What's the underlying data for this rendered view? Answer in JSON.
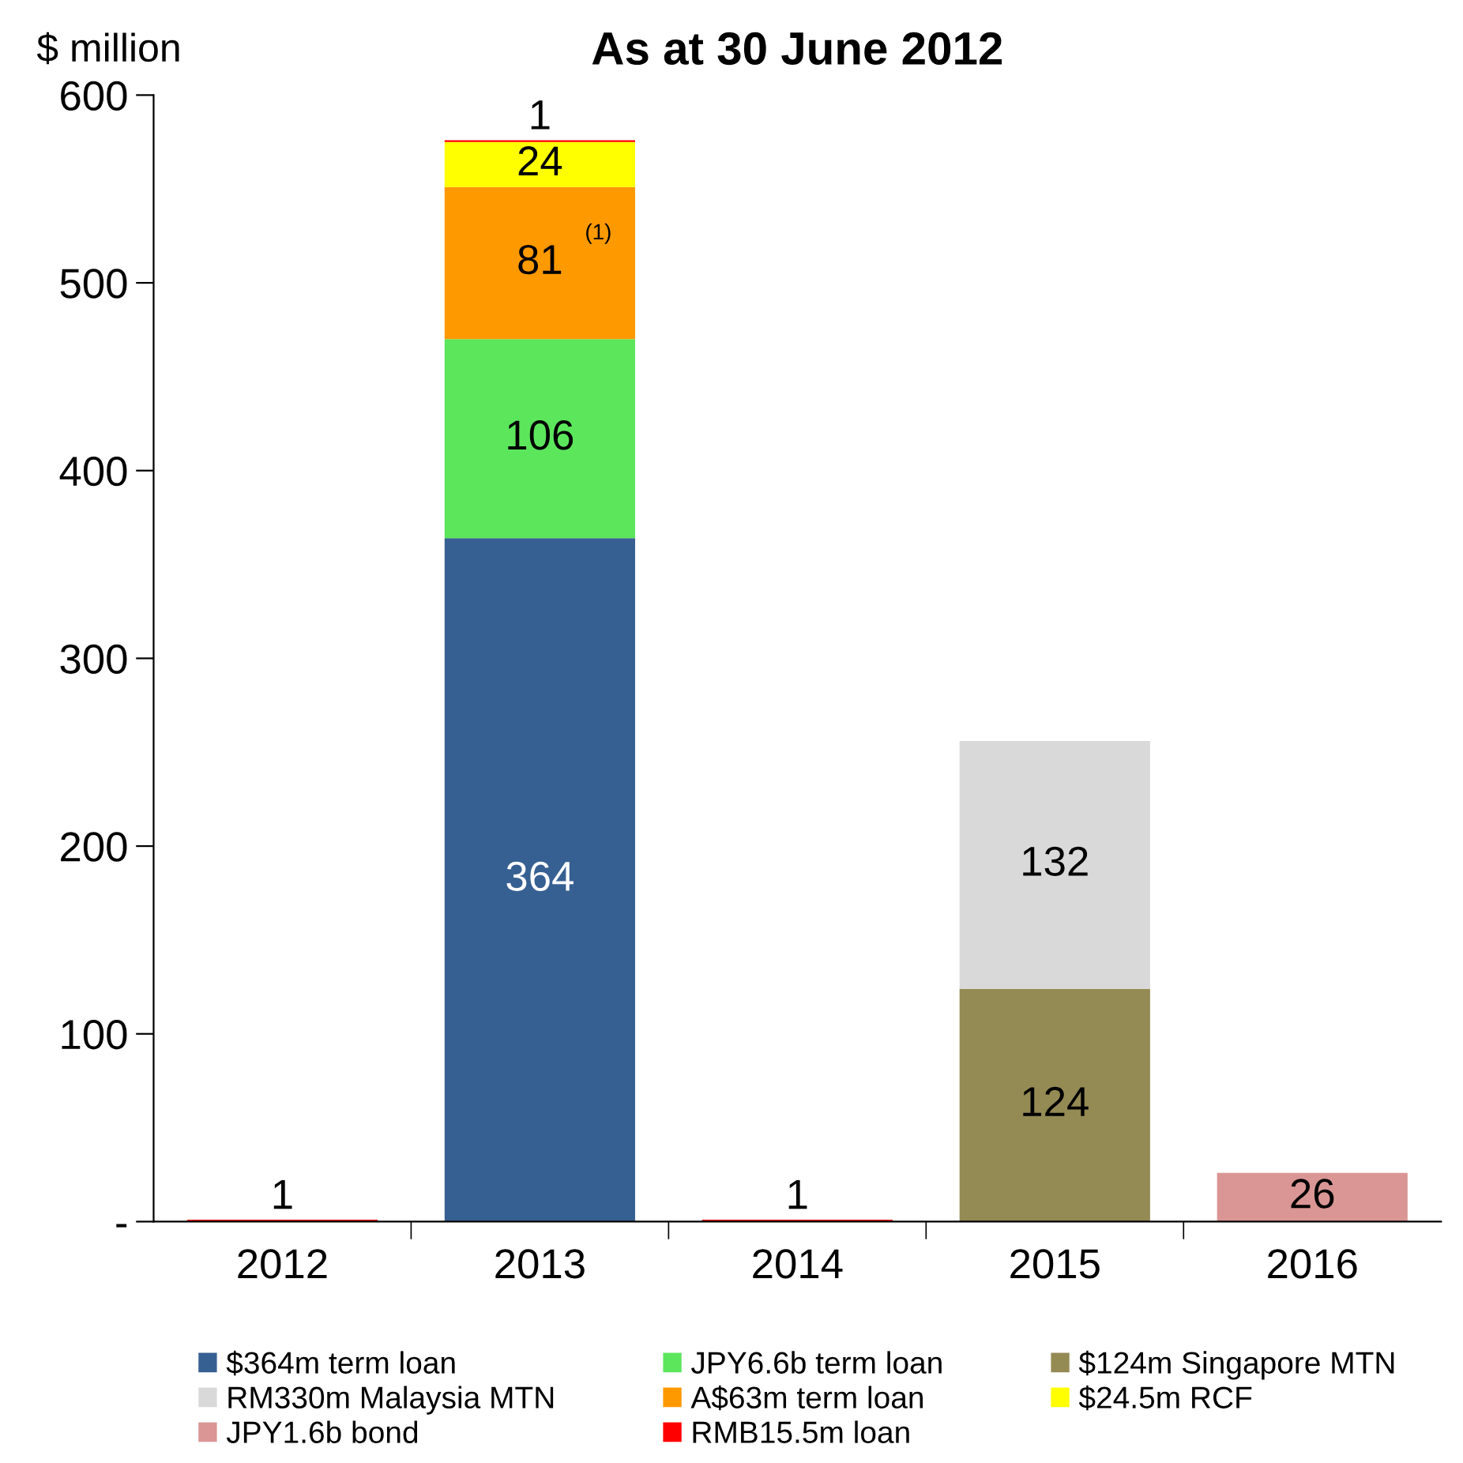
{
  "chart_data": {
    "type": "bar",
    "stacked": true,
    "title": "As at 30 June 2012",
    "ylabel": "$ million",
    "categories": [
      "2012",
      "2013",
      "2014",
      "2015",
      "2016"
    ],
    "series": [
      {
        "name": "$364m term loan",
        "color": "#376092",
        "values": [
          null,
          364,
          null,
          null,
          null
        ]
      },
      {
        "name": "JPY6.6b term loan",
        "color": "#5ce65c",
        "values": [
          null,
          106,
          null,
          null,
          null
        ]
      },
      {
        "name": "$124m Singapore MTN",
        "color": "#948a54",
        "values": [
          null,
          null,
          null,
          124,
          null
        ]
      },
      {
        "name": "RM330m Malaysia MTN",
        "color": "#d9d9d9",
        "values": [
          null,
          null,
          null,
          132,
          null
        ]
      },
      {
        "name": "A$63m term loan",
        "color": "#ff9900",
        "values": [
          null,
          81,
          null,
          null,
          null
        ]
      },
      {
        "name": "$24.5m RCF",
        "color": "#ffff00",
        "values": [
          null,
          24,
          null,
          null,
          null
        ]
      },
      {
        "name": "JPY1.6b bond",
        "color": "#d99694",
        "values": [
          null,
          null,
          null,
          null,
          26
        ]
      },
      {
        "name": "RMB15.5m loan",
        "color": "#ff0000",
        "values": [
          1,
          1,
          1,
          null,
          null
        ]
      }
    ],
    "ylim": [
      0,
      600
    ],
    "yticks": [
      {
        "value": 0,
        "label": "-"
      },
      100,
      200,
      300,
      400,
      500,
      600
    ],
    "annotations": [
      "(1)"
    ],
    "data_labels": true,
    "legend": "bottom",
    "grid": false
  }
}
